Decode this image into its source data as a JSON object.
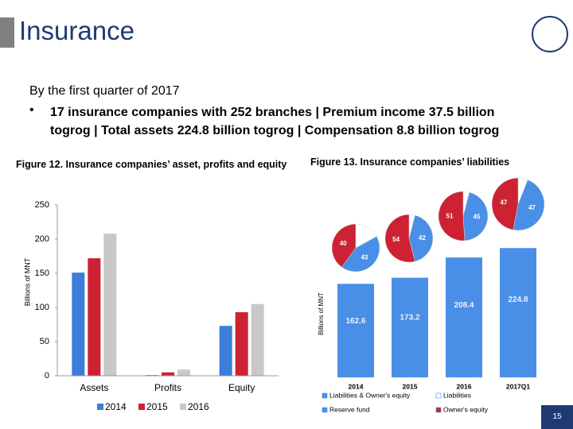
{
  "slide": {
    "title": "Insurance",
    "intro": "By the first quarter of 2017",
    "bullet": "17 insurance companies with 252 branches | Premium income 37.5 billion togrog | Total assets 224.8 billion togrog | Compensation 8.8 billion togrog",
    "page_number": "15"
  },
  "chart_data": [
    {
      "type": "bar",
      "title": "Figure 12. Insurance companies’ asset, profits and equity",
      "y_label": "Billions of MNT",
      "categories": [
        "Assets",
        "Profits",
        "Equity"
      ],
      "series": [
        {
          "name": "2014",
          "color": "#3c7dd9",
          "values": [
            151,
            1,
            73
          ]
        },
        {
          "name": "2015",
          "color": "#cc2233",
          "values": [
            172,
            5,
            93
          ]
        },
        {
          "name": "2016",
          "color": "#c8c8c8",
          "values": [
            208,
            9,
            105
          ]
        }
      ],
      "ylim": [
        0,
        250
      ],
      "yticks": [
        0,
        50,
        100,
        150,
        200,
        250
      ],
      "grid": false,
      "legend": "bottom"
    },
    {
      "type": "bar-pie",
      "title": "Figure 13. Insurance companies’ liabilities",
      "y_label": "Billions of MNT",
      "categories": [
        "2014",
        "2015",
        "2016",
        "2017Q1"
      ],
      "series": [
        {
          "name": "Liabilities & Owner's equity",
          "color": "#4a8fe7",
          "values": [
            162.6,
            173.2,
            208.4,
            224.8
          ]
        }
      ],
      "pie_series": [
        {
          "name": "Liabilities",
          "color": "#ffffff",
          "values": [
            17,
            4,
            4,
            6
          ],
          "data_labels": false
        },
        {
          "name": "Reserve fund",
          "color": "#4a8fe7",
          "values": [
            43,
            42,
            45,
            47
          ],
          "data_labels": true
        },
        {
          "name": "Owner's equity",
          "color": "#cc2233",
          "values": [
            40,
            54,
            51,
            47
          ],
          "data_labels": true
        }
      ],
      "ylim": [
        0,
        250
      ],
      "grid": false,
      "legend": "bottom"
    }
  ]
}
